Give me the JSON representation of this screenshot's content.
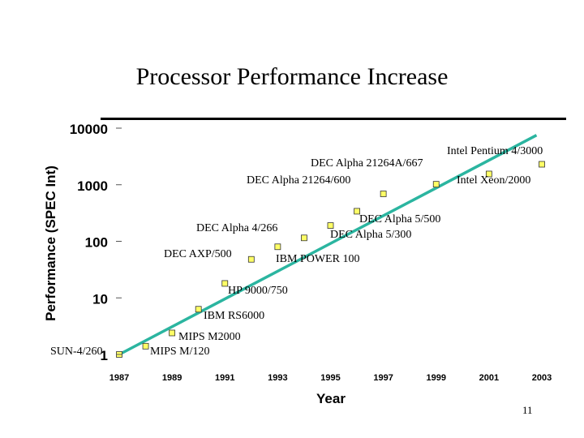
{
  "slide": {
    "title": "Processor Performance Increase",
    "page_number": "11"
  },
  "chart_data": {
    "type": "scatter",
    "title": "Processor Performance Increase",
    "xlabel": "Year",
    "ylabel": "Performance (SPEC Int)",
    "y_scale": "log",
    "xlim": [
      1987,
      2003
    ],
    "ylim": [
      1,
      10000
    ],
    "x_ticks": [
      "1987",
      "1989",
      "1991",
      "1993",
      "1995",
      "1997",
      "1999",
      "2001",
      "2003"
    ],
    "y_ticks": [
      "1",
      "10",
      "100",
      "1000",
      "10000"
    ],
    "points": [
      {
        "label": "SUN-4/260",
        "x": 1987,
        "y": 1
      },
      {
        "label": "MIPS M/120",
        "x": 1988,
        "y": 1.4
      },
      {
        "label": "MIPS M2000",
        "x": 1989,
        "y": 2.4
      },
      {
        "label": "IBM RS6000",
        "x": 1990,
        "y": 6.3
      },
      {
        "label": "HP 9000/750",
        "x": 1991,
        "y": 18
      },
      {
        "label": "DEC AXP/500",
        "x": 1992,
        "y": 48
      },
      {
        "label": "DEC Alpha 4/266",
        "x": 1993,
        "y": 80
      },
      {
        "label": "IBM POWER 100",
        "x": 1994,
        "y": 115
      },
      {
        "label": "DEC Alpha 5/300",
        "x": 1995,
        "y": 190
      },
      {
        "label": "DEC Alpha 5/500",
        "x": 1996,
        "y": 340
      },
      {
        "label": "DEC Alpha 21264/600",
        "x": 1997,
        "y": 690
      },
      {
        "label": "DEC Alpha 21264A/667",
        "x": 1999,
        "y": 1020
      },
      {
        "label": "Intel Xeon/2000",
        "x": 2001,
        "y": 1550
      },
      {
        "label": "Intel Pentium 4/3000",
        "x": 2003,
        "y": 2300
      }
    ],
    "trendline": {
      "color": "#2bb5a0",
      "from": {
        "x": 1987,
        "y": 1
      },
      "to": {
        "x": 2002.8,
        "y": 7500
      }
    },
    "marker_color": "#ffff66"
  }
}
